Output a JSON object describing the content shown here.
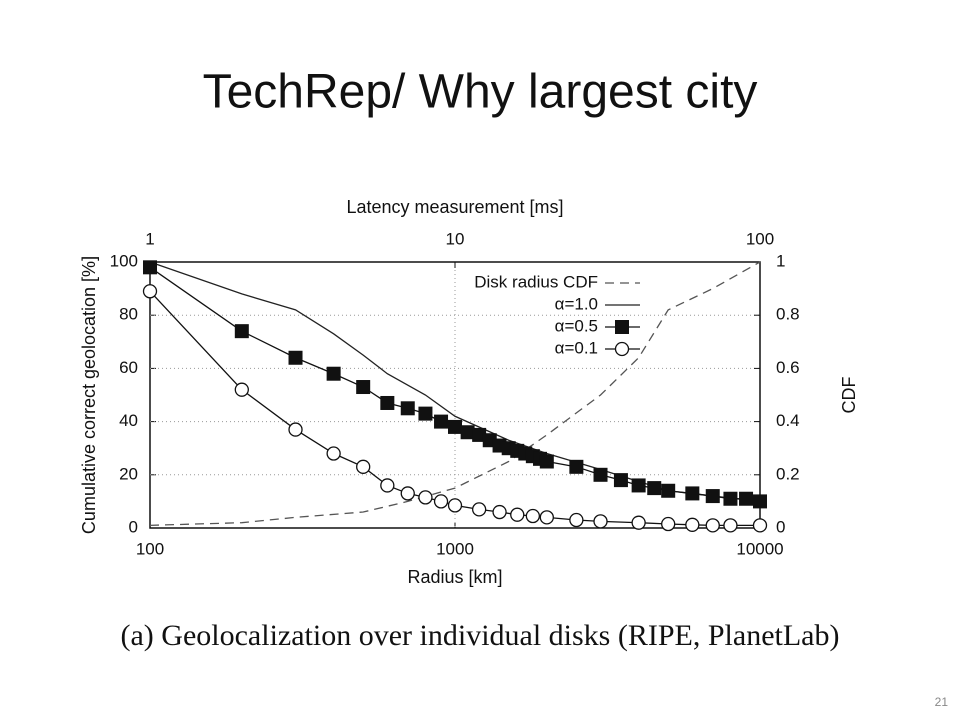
{
  "title": "TechRep/ Why largest city",
  "caption": "(a) Geolocalization over individual disks (RIPE, PlanetLab)",
  "page_number": "21",
  "chart_data": {
    "type": "line",
    "x_label": "Radius [km]",
    "x2_label": "Latency measurement [ms]",
    "y_label": "Cumulative correct geolocation [%]",
    "y2_label": "CDF",
    "xscale": "log",
    "xlim": [
      100,
      10000
    ],
    "xticks": [
      100,
      1000,
      10000
    ],
    "x2scale": "log",
    "x2lim": [
      1,
      100
    ],
    "x2ticks": [
      1,
      10,
      100
    ],
    "ylim": [
      0,
      100
    ],
    "yticks": [
      0,
      20,
      40,
      60,
      80,
      100
    ],
    "y2lim": [
      0,
      1
    ],
    "y2ticks": [
      0,
      0.2,
      0.4,
      0.6,
      0.8,
      1
    ],
    "grid": true,
    "legend": "upper right",
    "series": [
      {
        "name": "Disk radius CDF",
        "color": "#555555",
        "line_style": "dashed",
        "marker": null,
        "axis": "y2",
        "x": [
          100,
          200,
          300,
          500,
          700,
          1000,
          1500,
          2000,
          3000,
          4000,
          5000,
          7000,
          10000
        ],
        "values": [
          0.01,
          0.02,
          0.04,
          0.06,
          0.1,
          0.15,
          0.25,
          0.35,
          0.5,
          0.64,
          0.82,
          0.9,
          1.0
        ]
      },
      {
        "name": "α=1.0",
        "color": "#222222",
        "line_style": "solid",
        "marker": null,
        "x": [
          100,
          200,
          300,
          400,
          500,
          600,
          800,
          1000,
          1500,
          2000,
          3000,
          5000,
          7000,
          10000
        ],
        "values": [
          100,
          88,
          82,
          73,
          65,
          58,
          50,
          42,
          33,
          28,
          22,
          14,
          12,
          10
        ]
      },
      {
        "name": "α=0.5",
        "color": "#111111",
        "line_style": "solid",
        "marker": "square",
        "x": [
          100,
          200,
          300,
          400,
          500,
          600,
          700,
          800,
          900,
          1000,
          1100,
          1200,
          1300,
          1400,
          1500,
          1600,
          1700,
          1800,
          1900,
          2000,
          2500,
          3000,
          3500,
          4000,
          4500,
          5000,
          6000,
          7000,
          8000,
          9000,
          10000
        ],
        "values": [
          98,
          74,
          64,
          58,
          53,
          47,
          45,
          43,
          40,
          38,
          36,
          35,
          33,
          31,
          30,
          29,
          28,
          27,
          26,
          25,
          23,
          20,
          18,
          16,
          15,
          14,
          13,
          12,
          11,
          11,
          10
        ]
      },
      {
        "name": "α=0.1",
        "color": "#111111",
        "line_style": "solid",
        "marker": "circle",
        "x": [
          100,
          200,
          300,
          400,
          500,
          600,
          700,
          800,
          900,
          1000,
          1200,
          1400,
          1600,
          1800,
          2000,
          2500,
          3000,
          4000,
          5000,
          6000,
          7000,
          8000,
          10000
        ],
        "values": [
          89,
          52,
          37,
          28,
          23,
          16,
          13,
          11.5,
          10,
          8.5,
          7,
          6,
          5,
          4.5,
          4,
          3,
          2.5,
          2,
          1.5,
          1.2,
          1,
          1,
          1
        ]
      }
    ]
  }
}
